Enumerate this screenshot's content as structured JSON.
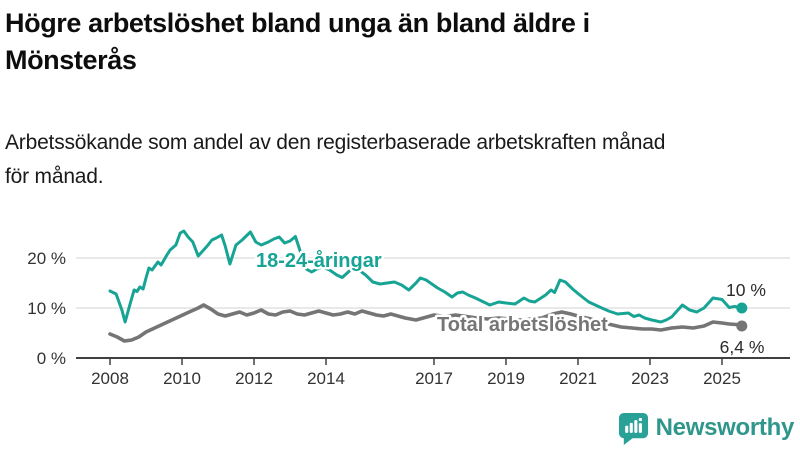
{
  "title": "Högre arbetslöshet bland unga än bland äldre i\nMönsterås",
  "subtitle": "Arbetssökande som andel av den registerbaserade arbetskraften månad\nför månad.",
  "branding": {
    "name": "Newsworthy",
    "icon": "speech-bubble-bar-chart-icon"
  },
  "colors": {
    "young": "#18a495",
    "total": "#757575",
    "grid": "#dcdcdc",
    "axis": "#404040",
    "tick_text": "#333333",
    "value_text": "#2b2b2b",
    "title_text": "#0d0d0d",
    "brand_icon": "#2aa197",
    "brand_text": "#2f968b"
  },
  "chart_data": {
    "type": "line",
    "unit": "%",
    "grid": "horizontal",
    "x_axis": {
      "range": [
        2007.8,
        2025.8
      ],
      "ticks": [
        {
          "value": 2008,
          "label": "2008"
        },
        {
          "value": 2010,
          "label": "2010"
        },
        {
          "value": 2012,
          "label": "2012"
        },
        {
          "value": 2014,
          "label": "2014"
        },
        {
          "value": 2017,
          "label": "2017"
        },
        {
          "value": 2019,
          "label": "2019"
        },
        {
          "value": 2021,
          "label": "2021"
        },
        {
          "value": 2023,
          "label": "2023"
        },
        {
          "value": 2025,
          "label": "2025"
        }
      ]
    },
    "y_axis": {
      "range": [
        0,
        27
      ],
      "ticks": [
        {
          "value": 0,
          "label": "0 %"
        },
        {
          "value": 10,
          "label": "10 %"
        },
        {
          "value": 20,
          "label": "20 %"
        }
      ]
    },
    "series": [
      {
        "name": "18-24-åringar",
        "color": "#18a495",
        "end_label": "10 %",
        "points": [
          [
            2008.0,
            13.4
          ],
          [
            2008.17,
            12.8
          ],
          [
            2008.33,
            9.6
          ],
          [
            2008.42,
            7.2
          ],
          [
            2008.55,
            10.6
          ],
          [
            2008.67,
            13.6
          ],
          [
            2008.75,
            13.3
          ],
          [
            2008.83,
            14.2
          ],
          [
            2008.92,
            13.8
          ],
          [
            2009.0,
            16.0
          ],
          [
            2009.08,
            18.0
          ],
          [
            2009.17,
            17.6
          ],
          [
            2009.33,
            19.2
          ],
          [
            2009.42,
            18.6
          ],
          [
            2009.58,
            20.6
          ],
          [
            2009.67,
            21.6
          ],
          [
            2009.83,
            22.6
          ],
          [
            2009.95,
            25.0
          ],
          [
            2010.05,
            25.4
          ],
          [
            2010.17,
            24.2
          ],
          [
            2010.3,
            23.2
          ],
          [
            2010.45,
            20.4
          ],
          [
            2010.55,
            21.2
          ],
          [
            2010.7,
            22.4
          ],
          [
            2010.83,
            23.6
          ],
          [
            2010.95,
            24.0
          ],
          [
            2011.1,
            24.6
          ],
          [
            2011.2,
            22.4
          ],
          [
            2011.33,
            18.8
          ],
          [
            2011.5,
            22.6
          ],
          [
            2011.67,
            23.6
          ],
          [
            2011.9,
            25.2
          ],
          [
            2012.05,
            23.2
          ],
          [
            2012.2,
            22.6
          ],
          [
            2012.4,
            23.2
          ],
          [
            2012.55,
            23.8
          ],
          [
            2012.7,
            24.2
          ],
          [
            2012.85,
            23.0
          ],
          [
            2013.0,
            23.4
          ],
          [
            2013.15,
            24.3
          ],
          [
            2013.3,
            21.0
          ],
          [
            2013.45,
            17.8
          ],
          [
            2013.6,
            17.2
          ],
          [
            2013.75,
            17.8
          ],
          [
            2013.9,
            18.2
          ],
          [
            2014.1,
            17.6
          ],
          [
            2014.3,
            16.6
          ],
          [
            2014.45,
            16.1
          ],
          [
            2014.65,
            17.4
          ],
          [
            2014.8,
            18.0
          ],
          [
            2014.95,
            17.4
          ],
          [
            2015.1,
            16.6
          ],
          [
            2015.3,
            15.2
          ],
          [
            2015.5,
            14.8
          ],
          [
            2015.7,
            15.0
          ],
          [
            2015.9,
            15.2
          ],
          [
            2016.1,
            14.6
          ],
          [
            2016.3,
            13.6
          ],
          [
            2016.5,
            15.0
          ],
          [
            2016.62,
            16.0
          ],
          [
            2016.78,
            15.6
          ],
          [
            2016.9,
            15.0
          ],
          [
            2017.1,
            14.0
          ],
          [
            2017.3,
            13.2
          ],
          [
            2017.5,
            12.2
          ],
          [
            2017.65,
            13.0
          ],
          [
            2017.8,
            13.2
          ],
          [
            2017.95,
            12.6
          ],
          [
            2018.15,
            12.0
          ],
          [
            2018.35,
            11.3
          ],
          [
            2018.55,
            10.6
          ],
          [
            2018.8,
            11.2
          ],
          [
            2019.0,
            11.0
          ],
          [
            2019.25,
            10.8
          ],
          [
            2019.5,
            12.0
          ],
          [
            2019.65,
            11.4
          ],
          [
            2019.8,
            11.2
          ],
          [
            2020.1,
            12.6
          ],
          [
            2020.25,
            13.6
          ],
          [
            2020.35,
            13.1
          ],
          [
            2020.5,
            15.6
          ],
          [
            2020.65,
            15.2
          ],
          [
            2020.85,
            13.8
          ],
          [
            2021.05,
            12.6
          ],
          [
            2021.3,
            11.2
          ],
          [
            2021.6,
            10.2
          ],
          [
            2021.85,
            9.4
          ],
          [
            2022.1,
            8.8
          ],
          [
            2022.4,
            9.0
          ],
          [
            2022.55,
            8.3
          ],
          [
            2022.7,
            8.6
          ],
          [
            2022.85,
            8.0
          ],
          [
            2023.05,
            7.6
          ],
          [
            2023.3,
            7.2
          ],
          [
            2023.45,
            7.6
          ],
          [
            2023.6,
            8.2
          ],
          [
            2023.9,
            10.6
          ],
          [
            2024.1,
            9.6
          ],
          [
            2024.3,
            9.2
          ],
          [
            2024.5,
            10.0
          ],
          [
            2024.75,
            12.0
          ],
          [
            2025.0,
            11.7
          ],
          [
            2025.2,
            10.1
          ],
          [
            2025.35,
            10.3
          ],
          [
            2025.55,
            10.0
          ]
        ]
      },
      {
        "name": "Total arbetslöshet",
        "color": "#757575",
        "end_label": "6,4 %",
        "points": [
          [
            2008.0,
            4.8
          ],
          [
            2008.2,
            4.2
          ],
          [
            2008.4,
            3.4
          ],
          [
            2008.6,
            3.6
          ],
          [
            2008.8,
            4.2
          ],
          [
            2009.0,
            5.2
          ],
          [
            2009.3,
            6.2
          ],
          [
            2009.6,
            7.2
          ],
          [
            2009.9,
            8.2
          ],
          [
            2010.2,
            9.2
          ],
          [
            2010.45,
            10.0
          ],
          [
            2010.6,
            10.6
          ],
          [
            2010.8,
            9.8
          ],
          [
            2011.0,
            8.8
          ],
          [
            2011.2,
            8.4
          ],
          [
            2011.4,
            8.8
          ],
          [
            2011.6,
            9.2
          ],
          [
            2011.8,
            8.6
          ],
          [
            2012.0,
            9.0
          ],
          [
            2012.2,
            9.6
          ],
          [
            2012.4,
            8.8
          ],
          [
            2012.6,
            8.6
          ],
          [
            2012.8,
            9.2
          ],
          [
            2013.0,
            9.4
          ],
          [
            2013.2,
            8.8
          ],
          [
            2013.4,
            8.6
          ],
          [
            2013.6,
            9.0
          ],
          [
            2013.8,
            9.4
          ],
          [
            2014.0,
            9.0
          ],
          [
            2014.2,
            8.6
          ],
          [
            2014.4,
            8.8
          ],
          [
            2014.6,
            9.2
          ],
          [
            2014.8,
            8.8
          ],
          [
            2015.0,
            9.4
          ],
          [
            2015.2,
            9.0
          ],
          [
            2015.4,
            8.6
          ],
          [
            2015.6,
            8.4
          ],
          [
            2015.8,
            8.8
          ],
          [
            2016.0,
            8.4
          ],
          [
            2016.2,
            8.0
          ],
          [
            2016.5,
            7.6
          ],
          [
            2016.8,
            8.2
          ],
          [
            2017.0,
            8.6
          ],
          [
            2017.3,
            8.3
          ],
          [
            2017.6,
            8.6
          ],
          [
            2017.9,
            8.3
          ],
          [
            2018.2,
            8.0
          ],
          [
            2018.5,
            7.8
          ],
          [
            2018.8,
            8.0
          ],
          [
            2019.1,
            7.8
          ],
          [
            2019.4,
            7.6
          ],
          [
            2019.7,
            7.8
          ],
          [
            2020.0,
            8.0
          ],
          [
            2020.3,
            8.8
          ],
          [
            2020.55,
            9.2
          ],
          [
            2020.8,
            8.8
          ],
          [
            2021.0,
            8.4
          ],
          [
            2021.3,
            7.9
          ],
          [
            2021.6,
            7.3
          ],
          [
            2021.9,
            6.7
          ],
          [
            2022.2,
            6.2
          ],
          [
            2022.5,
            6.0
          ],
          [
            2022.8,
            5.8
          ],
          [
            2023.05,
            5.8
          ],
          [
            2023.3,
            5.6
          ],
          [
            2023.6,
            6.0
          ],
          [
            2023.9,
            6.2
          ],
          [
            2024.2,
            6.0
          ],
          [
            2024.5,
            6.4
          ],
          [
            2024.75,
            7.2
          ],
          [
            2025.0,
            7.0
          ],
          [
            2025.2,
            6.8
          ],
          [
            2025.4,
            6.7
          ],
          [
            2025.55,
            6.4
          ]
        ]
      }
    ]
  }
}
